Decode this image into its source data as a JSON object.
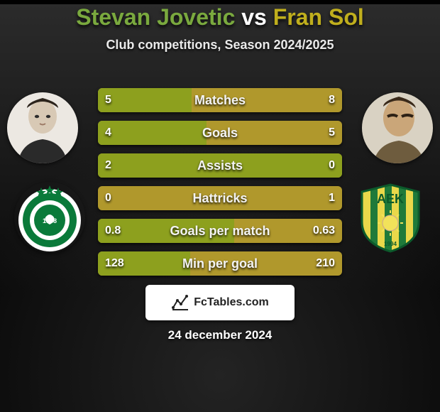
{
  "header": {
    "title_left": "Stevan Jovetic",
    "title_vs": " vs ",
    "title_right": "Fran Sol",
    "subtitle": "Club competitions, Season 2024/2025",
    "title_color_left": "#7aa93e",
    "title_color_vs": "#ffffff",
    "title_color_right": "#c0af1d",
    "title_fontsize": "32px"
  },
  "players": {
    "left": {
      "avatar_bg": "#e8e5e0",
      "avatar_accent": "#3b3b3b"
    },
    "right": {
      "avatar_bg": "#d9d3c6",
      "avatar_accent": "#6b5a3e"
    }
  },
  "crests": {
    "left": {
      "bg": "#ffffff",
      "ring_outer": "#0a7a3a",
      "ring_inner": "#ffffff",
      "center": "#0a7a3a",
      "text": "1948",
      "text_color": "#ffffff",
      "star_color": "#0a7a3a"
    },
    "right": {
      "stripes": [
        "#e9d84a",
        "#1f7a3a"
      ],
      "shield_border": "#0c5a2b",
      "text": "AEK",
      "text_color": "#0c5a2b",
      "sun_color": "#f2e25a",
      "year": "1994"
    }
  },
  "stats": {
    "bar_colors": {
      "left_fill": "#8da01e",
      "right_base": "#b0982c"
    },
    "label_fontsize": "18px",
    "value_fontsize": "16px",
    "rows": [
      {
        "label": "Matches",
        "left_text": "5",
        "right_text": "8",
        "left_ratio": 0.385
      },
      {
        "label": "Goals",
        "left_text": "4",
        "right_text": "5",
        "left_ratio": 0.444
      },
      {
        "label": "Assists",
        "left_text": "2",
        "right_text": "0",
        "left_ratio": 1.0
      },
      {
        "label": "Hattricks",
        "left_text": "0",
        "right_text": "1",
        "left_ratio": 0.0
      },
      {
        "label": "Goals per match",
        "left_text": "0.8",
        "right_text": "0.63",
        "left_ratio": 0.559
      },
      {
        "label": "Min per goal",
        "left_text": "128",
        "right_text": "210",
        "left_ratio": 0.379
      }
    ]
  },
  "footer": {
    "brand_logo_label": "FcTables logo",
    "brand_text": "FcTables.com",
    "date": "24 december 2024"
  }
}
